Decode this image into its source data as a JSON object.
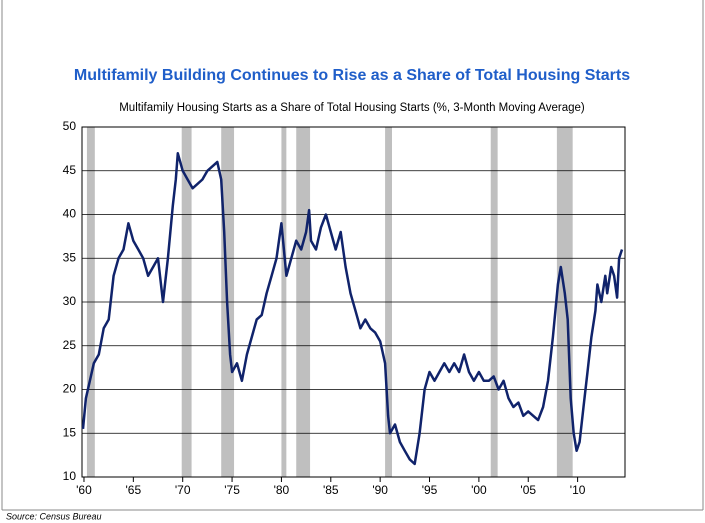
{
  "chart_data": {
    "type": "line",
    "title": "Multifamily Building Continues to Rise as a Share of Total Housing Starts",
    "subtitle": "Multifamily Housing Starts as a Share of Total Housing Starts (%, 3-Month Moving Average)",
    "source": "Source: Census Bureau",
    "xlim": [
      1959.8,
      2014.8
    ],
    "xticks": [
      {
        "value": 1960,
        "label": "'60"
      },
      {
        "value": 1965,
        "label": "'65"
      },
      {
        "value": 1970,
        "label": "'70"
      },
      {
        "value": 1975,
        "label": "'75"
      },
      {
        "value": 1980,
        "label": "'80"
      },
      {
        "value": 1985,
        "label": "'85"
      },
      {
        "value": 1990,
        "label": "'90"
      },
      {
        "value": 1995,
        "label": "'95"
      },
      {
        "value": 2000,
        "label": "'00"
      },
      {
        "value": 2005,
        "label": "'05"
      },
      {
        "value": 2010,
        "label": "'10"
      }
    ],
    "ylim": [
      10,
      50
    ],
    "yticks": [
      10,
      15,
      20,
      25,
      30,
      35,
      40,
      45,
      50
    ],
    "grid": true,
    "shading": [
      [
        1960.3,
        1961.1
      ],
      [
        1969.9,
        1970.9
      ],
      [
        1973.9,
        1975.2
      ],
      [
        1980.0,
        1980.5
      ],
      [
        1981.5,
        1982.9
      ],
      [
        1990.5,
        1991.2
      ],
      [
        2001.2,
        2001.9
      ],
      [
        2007.9,
        2009.5
      ]
    ],
    "shading_color": "#bfbfbf",
    "series": [
      {
        "color": "#10236b",
        "x": [
          1959.9,
          1960.2,
          1960.5,
          1961,
          1961.5,
          1962,
          1962.5,
          1963,
          1963.5,
          1964,
          1964.5,
          1965,
          1965.5,
          1966,
          1966.5,
          1967,
          1967.5,
          1968,
          1968.5,
          1969,
          1969.3,
          1969.5,
          1970,
          1970.5,
          1971,
          1971.5,
          1972,
          1972.5,
          1973,
          1973.5,
          1973.9,
          1974.2,
          1974.5,
          1974.8,
          1975,
          1975.5,
          1976,
          1976.5,
          1977,
          1977.5,
          1978,
          1978.5,
          1979,
          1979.5,
          1980,
          1980.5,
          1981,
          1981.5,
          1982,
          1982.5,
          1982.8,
          1983,
          1983.5,
          1984,
          1984.5,
          1985,
          1985.5,
          1986,
          1986.5,
          1987,
          1987.5,
          1988,
          1988.5,
          1989,
          1989.5,
          1990,
          1990.5,
          1990.8,
          1991,
          1991.5,
          1992,
          1992.5,
          1993,
          1993.5,
          1994,
          1994.5,
          1995,
          1995.5,
          1996,
          1996.5,
          1997,
          1997.5,
          1998,
          1998.5,
          1999,
          1999.5,
          2000,
          2000.5,
          2001,
          2001.5,
          2002,
          2002.5,
          2003,
          2003.5,
          2004,
          2004.5,
          2005,
          2005.5,
          2006,
          2006.5,
          2007,
          2007.5,
          2008,
          2008.3,
          2008.7,
          2009,
          2009.3,
          2009.6,
          2009.9,
          2010.2,
          2010.6,
          2011,
          2011.4,
          2011.8,
          2012,
          2012.4,
          2012.8,
          2013,
          2013.4,
          2013.7,
          2014,
          2014.2,
          2014.5
        ],
        "values": [
          15.5,
          19,
          20.5,
          23,
          24,
          27,
          28,
          33,
          35,
          36,
          39,
          37,
          36,
          35,
          33,
          34,
          35,
          30,
          35,
          41,
          44,
          47,
          45,
          44,
          43,
          43.5,
          44,
          45,
          45.5,
          46,
          44,
          38,
          30,
          24,
          22,
          23,
          21,
          24,
          26,
          28,
          28.5,
          31,
          33,
          35,
          39,
          33,
          35,
          37,
          36,
          38,
          40.5,
          37,
          36,
          38.5,
          40,
          38,
          36,
          38,
          34,
          31,
          29,
          27,
          28,
          27,
          26.5,
          25.5,
          23,
          17,
          15,
          16,
          14,
          13,
          12,
          11.5,
          15,
          20,
          22,
          21,
          22,
          23,
          22,
          23,
          22,
          24,
          22,
          21,
          22,
          21,
          21,
          21.5,
          20,
          21,
          19,
          18,
          18.5,
          17,
          17.5,
          17,
          16.5,
          18,
          21,
          26,
          32,
          34,
          31,
          28,
          19,
          15,
          13,
          14,
          18,
          22,
          26,
          29,
          32,
          30,
          33,
          31,
          34,
          33,
          30.5,
          35,
          36
        ]
      }
    ]
  }
}
